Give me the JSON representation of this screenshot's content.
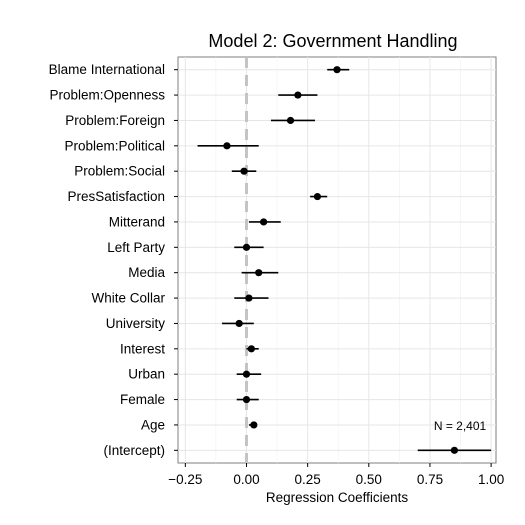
{
  "chart_data": {
    "type": "scatter",
    "subtype": "coefficient-plot",
    "title": "Model 2: Government Handling",
    "xlabel": "Regression Coefficients",
    "ylabel": "",
    "xlim": [
      -0.28,
      1.02
    ],
    "xticks": [
      -0.25,
      0.0,
      0.25,
      0.5,
      0.75,
      1.0
    ],
    "xtick_labels": [
      "−0.25",
      "0.00",
      "0.25",
      "0.50",
      "0.75",
      "1.00"
    ],
    "reference_line": 0.0,
    "grid": true,
    "annotation": "N = 2,401",
    "terms": [
      {
        "label": "Blame International",
        "estimate": 0.37,
        "lower": 0.33,
        "upper": 0.42
      },
      {
        "label": "Problem:Openness",
        "estimate": 0.21,
        "lower": 0.13,
        "upper": 0.29
      },
      {
        "label": "Problem:Foreign",
        "estimate": 0.18,
        "lower": 0.1,
        "upper": 0.28
      },
      {
        "label": "Problem:Political",
        "estimate": -0.08,
        "lower": -0.2,
        "upper": 0.05
      },
      {
        "label": "Problem:Social",
        "estimate": -0.01,
        "lower": -0.06,
        "upper": 0.04
      },
      {
        "label": "PresSatisfaction",
        "estimate": 0.29,
        "lower": 0.26,
        "upper": 0.33
      },
      {
        "label": "Mitterand",
        "estimate": 0.07,
        "lower": 0.01,
        "upper": 0.14
      },
      {
        "label": "Left Party",
        "estimate": 0.0,
        "lower": -0.05,
        "upper": 0.07
      },
      {
        "label": "Media",
        "estimate": 0.05,
        "lower": -0.02,
        "upper": 0.13
      },
      {
        "label": "White Collar",
        "estimate": 0.01,
        "lower": -0.05,
        "upper": 0.09
      },
      {
        "label": "University",
        "estimate": -0.03,
        "lower": -0.1,
        "upper": 0.03
      },
      {
        "label": "Interest",
        "estimate": 0.02,
        "lower": 0.0,
        "upper": 0.05
      },
      {
        "label": "Urban",
        "estimate": 0.0,
        "lower": -0.04,
        "upper": 0.06
      },
      {
        "label": "Female",
        "estimate": 0.0,
        "lower": -0.04,
        "upper": 0.05
      },
      {
        "label": "Age",
        "estimate": 0.03,
        "lower": 0.01,
        "upper": 0.04
      },
      {
        "label": "(Intercept)",
        "estimate": 0.85,
        "lower": 0.7,
        "upper": 1.0
      }
    ]
  }
}
